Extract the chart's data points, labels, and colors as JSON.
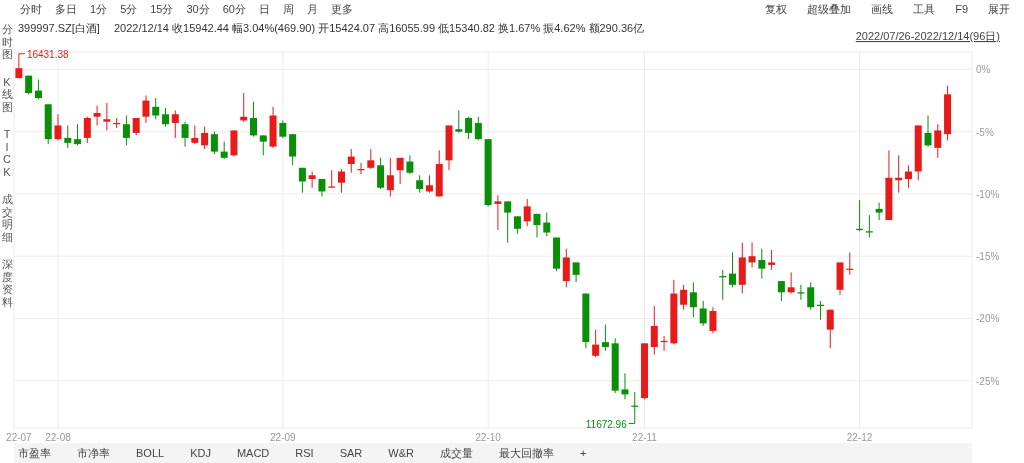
{
  "chart_data": {
    "type": "candlestick",
    "title": "399997.SZ[白酒]",
    "subtitle": "2022/12/14 收15942.44 幅3.04%(469.90) 开15424.07 高16055.99 低15340.82 换1.67% 振4.62% 额290.36亿",
    "categories": [
      "22-07",
      null,
      null,
      null,
      "22-08",
      null,
      null,
      null,
      null,
      null,
      null,
      null,
      null,
      null,
      null,
      null,
      null,
      null,
      null,
      null,
      null,
      null,
      null,
      null,
      null,
      null,
      null,
      "22-09",
      null,
      null,
      null,
      null,
      null,
      null,
      null,
      null,
      null,
      null,
      null,
      null,
      null,
      null,
      null,
      null,
      null,
      null,
      null,
      null,
      "22-10",
      null,
      null,
      null,
      null,
      null,
      null,
      null,
      null,
      null,
      null,
      null,
      null,
      null,
      null,
      null,
      "22-11",
      null,
      null,
      null,
      null,
      null,
      null,
      null,
      null,
      null,
      null,
      null,
      null,
      null,
      null,
      null,
      null,
      null,
      null,
      null,
      null,
      null,
      "22-12",
      null,
      null,
      null,
      null,
      null,
      null,
      null,
      null,
      null
    ],
    "ohlc": [
      [
        -0.7,
        1.1,
        -0.7,
        0.1
      ],
      [
        -0.5,
        -0.5,
        -2.0,
        -1.9
      ],
      [
        -1.7,
        -0.8,
        -2.4,
        -2.3
      ],
      [
        -2.8,
        -2.8,
        -6.0,
        -5.6
      ],
      [
        -5.6,
        -3.6,
        -5.7,
        -4.5
      ],
      [
        -5.5,
        -4.5,
        -6.3,
        -5.9
      ],
      [
        -5.6,
        -4.4,
        -6.1,
        -6.0
      ],
      [
        -5.5,
        -3.8,
        -5.9,
        -3.9
      ],
      [
        -3.8,
        -2.9,
        -4.5,
        -3.5
      ],
      [
        -4.2,
        -2.7,
        -4.9,
        -4.0
      ],
      [
        -4.4,
        -3.9,
        -4.7,
        -4.3
      ],
      [
        -4.4,
        -3.7,
        -6.1,
        -5.5
      ],
      [
        -5.1,
        -3.9,
        -5.3,
        -3.9
      ],
      [
        -3.8,
        -2.1,
        -4.3,
        -2.5
      ],
      [
        -3.0,
        -2.3,
        -4.0,
        -3.7
      ],
      [
        -3.6,
        -3.1,
        -4.6,
        -4.4
      ],
      [
        -4.3,
        -3.3,
        -5.5,
        -3.6
      ],
      [
        -4.4,
        -4.2,
        -6.2,
        -5.5
      ],
      [
        -5.9,
        -4.5,
        -6.0,
        -5.5
      ],
      [
        -6.1,
        -4.6,
        -6.4,
        -5.1
      ],
      [
        -5.2,
        -5.0,
        -6.8,
        -6.6
      ],
      [
        -6.6,
        -5.8,
        -7.2,
        -7.1
      ],
      [
        -6.9,
        -4.9,
        -7.0,
        -4.9
      ],
      [
        -4.1,
        -1.9,
        -4.2,
        -3.8
      ],
      [
        -3.9,
        -2.6,
        -5.4,
        -5.3
      ],
      [
        -5.3,
        -5.3,
        -6.9,
        -5.8
      ],
      [
        -6.2,
        -3.0,
        -6.3,
        -3.7
      ],
      [
        -4.3,
        -4.1,
        -5.5,
        -5.4
      ],
      [
        -5.2,
        -5.2,
        -7.7,
        -7.0
      ],
      [
        -7.9,
        -7.9,
        -9.9,
        -9.0
      ],
      [
        -8.8,
        -8.2,
        -9.5,
        -8.5
      ],
      [
        -8.8,
        -8.8,
        -10.2,
        -9.8
      ],
      [
        -9.5,
        -8.1,
        -9.5,
        -9.4
      ],
      [
        -9.1,
        -8.0,
        -9.9,
        -8.2
      ],
      [
        -7.6,
        -6.4,
        -8.3,
        -7.0
      ],
      [
        -8.1,
        -7.5,
        -8.4,
        -8.0
      ],
      [
        -7.9,
        -6.4,
        -8.0,
        -7.3
      ],
      [
        -7.7,
        -7.1,
        -9.6,
        -9.5
      ],
      [
        -9.7,
        -7.1,
        -10.2,
        -8.5
      ],
      [
        -8.1,
        -7.1,
        -9.2,
        -7.1
      ],
      [
        -7.4,
        -6.9,
        -8.4,
        -8.3
      ],
      [
        -8.9,
        -8.5,
        -9.9,
        -9.6
      ],
      [
        -9.8,
        -8.5,
        -9.9,
        -9.3
      ],
      [
        -10.2,
        -6.5,
        -10.2,
        -7.6
      ],
      [
        -7.3,
        -4.5,
        -8.1,
        -4.5
      ],
      [
        -4.8,
        -3.3,
        -5.1,
        -5.0
      ],
      [
        -3.9,
        -3.8,
        -5.6,
        -5.1
      ],
      [
        -4.3,
        -3.8,
        -5.7,
        -5.6
      ],
      [
        -5.6,
        -5.6,
        -11.0,
        -10.9
      ],
      [
        -10.8,
        -10.1,
        -12.9,
        -10.6
      ],
      [
        -10.6,
        -10.6,
        -13.9,
        -11.5
      ],
      [
        -11.8,
        -11.8,
        -13.2,
        -12.8
      ],
      [
        -12.2,
        -10.4,
        -12.6,
        -11.0
      ],
      [
        -11.6,
        -11.6,
        -13.5,
        -12.5
      ],
      [
        -12.3,
        -11.5,
        -13.4,
        -13.1
      ],
      [
        -13.5,
        -13.5,
        -16.2,
        -16.0
      ],
      [
        -17.0,
        -14.4,
        -17.5,
        -15.1
      ],
      [
        -15.5,
        -15.5,
        -17.1,
        -16.5
      ],
      [
        -18.0,
        -18.0,
        -22.4,
        -21.9
      ],
      [
        -23.0,
        -20.9,
        -23.1,
        -22.1
      ],
      [
        -21.9,
        -20.5,
        -22.6,
        -22.3
      ],
      [
        -22.0,
        -21.6,
        -26.0,
        -25.8
      ],
      [
        -25.7,
        -24.4,
        -26.5,
        -26.1
      ],
      [
        -27.0,
        -25.9,
        -27.8,
        -27.1
      ],
      [
        -26.4,
        -22.0,
        -26.5,
        -22.0
      ],
      [
        -22.3,
        -19.0,
        -22.9,
        -20.6
      ],
      [
        -21.9,
        -21.4,
        -22.6,
        -21.8
      ],
      [
        -22.0,
        -16.9,
        -22.1,
        -18.0
      ],
      [
        -18.9,
        -17.3,
        -19.3,
        -17.7
      ],
      [
        -17.9,
        -17.1,
        -19.9,
        -19.1
      ],
      [
        -19.2,
        -18.6,
        -20.6,
        -20.4
      ],
      [
        -21.0,
        -19.1,
        -21.2,
        -19.4
      ],
      [
        -16.6,
        -16.1,
        -18.5,
        -16.7
      ],
      [
        -16.4,
        -14.7,
        -17.5,
        -17.3
      ],
      [
        -17.3,
        -13.9,
        -18.0,
        -15.1
      ],
      [
        -15.5,
        -13.9,
        -15.9,
        -15.0
      ],
      [
        -15.3,
        -14.4,
        -16.8,
        -16.0
      ],
      [
        -15.7,
        -14.5,
        -16.1,
        -15.5
      ],
      [
        -17.0,
        -17.0,
        -18.6,
        -17.9
      ],
      [
        -17.9,
        -16.3,
        -18.0,
        -17.5
      ],
      [
        -17.9,
        -17.3,
        -18.5,
        -18.0
      ],
      [
        -17.5,
        -17.1,
        -19.3,
        -19.1
      ],
      [
        -18.9,
        -18.6,
        -20.1,
        -19.0
      ],
      [
        -20.9,
        -19.3,
        -22.4,
        -19.3
      ],
      [
        -17.7,
        -15.5,
        -18.1,
        -15.5
      ],
      [
        -16.1,
        -14.7,
        -16.5,
        -16.0
      ],
      [
        -12.8,
        -10.5,
        -13.0,
        -12.9
      ],
      [
        -13.0,
        -11.7,
        -13.5,
        -13.1
      ],
      [
        -11.2,
        -10.7,
        -12.1,
        -11.5
      ],
      [
        -12.1,
        -6.5,
        -12.1,
        -8.7
      ],
      [
        -8.9,
        -6.9,
        -9.9,
        -8.7
      ],
      [
        -8.8,
        -7.7,
        -9.5,
        -8.2
      ],
      [
        -8.2,
        -4.5,
        -8.9,
        -4.5
      ],
      [
        -5.1,
        -3.7,
        -6.2,
        -6.1
      ],
      [
        -6.3,
        -4.4,
        -7.1,
        -4.9
      ],
      [
        -5.2,
        -1.3,
        -5.7,
        -2.0
      ]
    ],
    "colors": [
      "#e81b1b",
      "#0a8f0a",
      "#0a8f0a",
      "#0a8f0a",
      "#e81b1b",
      "#0a8f0a",
      "#0a8f0a",
      "#e81b1b",
      "#e81b1b",
      "#e81b1b",
      "#e81b1b",
      "#0a8f0a",
      "#e81b1b",
      "#e81b1b",
      "#0a8f0a",
      "#0a8f0a",
      "#e81b1b",
      "#0a8f0a",
      "#e81b1b",
      "#e81b1b",
      "#0a8f0a",
      "#0a8f0a",
      "#e81b1b",
      "#e81b1b",
      "#0a8f0a",
      "#0a8f0a",
      "#e81b1b",
      "#0a8f0a",
      "#0a8f0a",
      "#0a8f0a",
      "#e81b1b",
      "#0a8f0a",
      "#e81b1b",
      "#e81b1b",
      "#e81b1b",
      "#e81b1b",
      "#e81b1b",
      "#0a8f0a",
      "#e81b1b",
      "#e81b1b",
      "#0a8f0a",
      "#0a8f0a",
      "#e81b1b",
      "#e81b1b",
      "#e81b1b",
      "#0a8f0a",
      "#0a8f0a",
      "#0a8f0a",
      "#0a8f0a",
      "#e81b1b",
      "#0a8f0a",
      "#0a8f0a",
      "#e81b1b",
      "#0a8f0a",
      "#0a8f0a",
      "#0a8f0a",
      "#e81b1b",
      "#0a8f0a",
      "#0a8f0a",
      "#e81b1b",
      "#0a8f0a",
      "#0a8f0a",
      "#0a8f0a",
      "#0a8f0a",
      "#e81b1b",
      "#e81b1b",
      "#e81b1b",
      "#e81b1b",
      "#e81b1b",
      "#0a8f0a",
      "#0a8f0a",
      "#e81b1b",
      "#0a8f0a",
      "#0a8f0a",
      "#e81b1b",
      "#e81b1b",
      "#0a8f0a",
      "#e81b1b",
      "#0a8f0a",
      "#e81b1b",
      "#0a8f0a",
      "#0a8f0a",
      "#0a8f0a",
      "#e81b1b",
      "#e81b1b",
      "#e81b1b",
      "#0a8f0a",
      "#0a8f0a",
      "#0a8f0a",
      "#e81b1b",
      "#e81b1b",
      "#e81b1b",
      "#e81b1b",
      "#0a8f0a",
      "#e81b1b",
      "#e81b1b"
    ],
    "ylim": [
      -28.8,
      1.4
    ],
    "yticks": [
      {
        "value": 0,
        "label": "0%"
      },
      {
        "value": -5,
        "label": "-5%"
      },
      {
        "value": -10,
        "label": "-10%"
      },
      {
        "value": -15,
        "label": "-15%"
      },
      {
        "value": -20,
        "label": "-20%"
      },
      {
        "value": -25,
        "label": "-25%"
      }
    ],
    "grid": true,
    "annotations": [
      "分时",
      "多日",
      "1分",
      "5分",
      "15分",
      "30分",
      "60分",
      "日",
      "周",
      "月",
      "更多",
      "复权",
      "超级叠加",
      "画线",
      "工具",
      "F9",
      "展开",
      "2022/07/26-2022/12/14(96日)",
      "分时图",
      "K线图",
      "TICK",
      "成交明细",
      "深度资料",
      "市盈率",
      "市净率",
      "BOLL",
      "KDJ",
      "MACD",
      "RSI",
      "SAR",
      "W&R",
      "成交量",
      "最大回撤率",
      "+",
      "16431.38",
      "11672.96"
    ]
  }
}
